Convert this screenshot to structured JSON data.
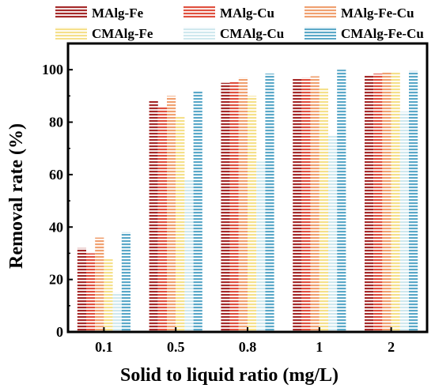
{
  "chart_data": {
    "type": "bar",
    "xlabel": "Solid to liquid ratio (mg/L)",
    "ylabel": "Removal rate (%)",
    "ylim": [
      0,
      110
    ],
    "yticks": [
      0,
      20,
      40,
      60,
      80,
      100
    ],
    "categories": [
      "0.1",
      "0.5",
      "0.8",
      "1",
      "2"
    ],
    "legend_position": "top, above plot (3 columns x 2 rows)",
    "grid": false,
    "series": [
      {
        "name": "MAlg-Fe",
        "color": "#a52a2a",
        "values": [
          32,
          88,
          95,
          96.5,
          98
        ]
      },
      {
        "name": "MAlg-Cu",
        "color": "#e0503f",
        "values": [
          30,
          86,
          95.5,
          97,
          98.5
        ]
      },
      {
        "name": "MAlg-Fe-Cu",
        "color": "#f0a070",
        "values": [
          36,
          90,
          97,
          97.5,
          99
        ]
      },
      {
        "name": "CMAlg-Fe",
        "color": "#f5e08a",
        "values": [
          28,
          82,
          90,
          93,
          99
        ]
      },
      {
        "name": "CMAlg-Cu",
        "color": "#cfe8ee",
        "values": [
          15,
          58,
          65,
          75,
          84
        ]
      },
      {
        "name": "CMAlg-Fe-Cu",
        "color": "#5aa8c8",
        "values": [
          38,
          92,
          98.5,
          100,
          99.5
        ]
      }
    ]
  }
}
